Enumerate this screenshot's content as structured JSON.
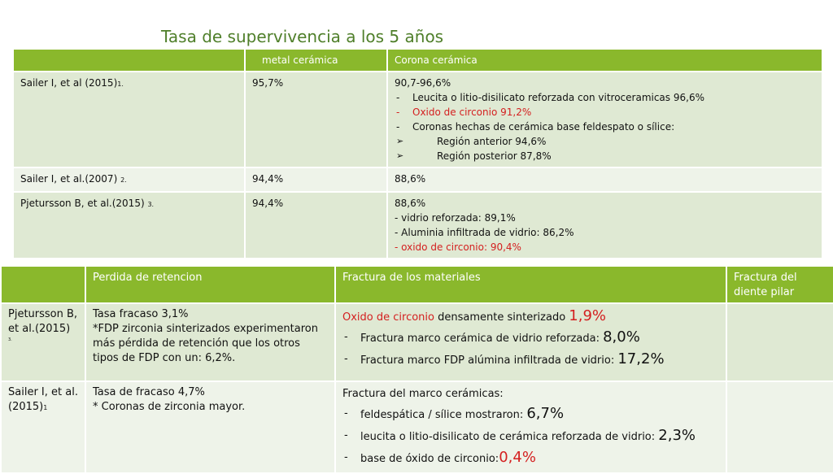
{
  "title": "Tasa de supervivencia a los 5 años",
  "table1": {
    "headers": [
      "",
      "metal cerámica",
      "Corona cerámica"
    ],
    "rows": [
      {
        "author": "Sailer I, et al (2015)",
        "ref": "1.",
        "metal": "95,7%",
        "corona_head": "90,7-96,6%",
        "items": [
          {
            "text": "Leucita o litio-disilicato reforzada con vitroceramicas 96,6%",
            "red": false
          },
          {
            "text": "Oxido de circonio 91,2%",
            "red": true
          },
          {
            "text": "Coronas hechas de cerámica base feldespato o sílice:",
            "red": false
          }
        ],
        "subitems": [
          "Región anterior 94,6%",
          "Región posterior 87,8%"
        ]
      },
      {
        "author": "Sailer I, et al.(2007)",
        "ref": "2.",
        "metal": "94,4%",
        "corona_head": "88,6%"
      },
      {
        "author": "Pjetursson B, et al.(2015)",
        "ref": "3.",
        "metal": "94,4%",
        "corona_head": "88,6%",
        "lines": [
          "- vidrio reforzada: 89,1%",
          "- Aluminia infiltrada de vidrio: 86,2%"
        ],
        "red_line": "- oxido de circonio: 90,4%"
      }
    ]
  },
  "table2": {
    "headers": [
      "",
      "Perdida de retencion",
      "Fractura de los materiales",
      "Fractura del diente pilar"
    ],
    "rows": [
      {
        "author": "Pjetursson B, et al.(2015)",
        "ref": "3.",
        "retencion": [
          "Tasa fracaso 3,1%",
          "*FDP zirconia sinterizados experimentaron más pérdida de retención que los otros tipos de FDP con un: 6,2%."
        ],
        "frac_lead_red": "Oxido de circonio",
        "frac_lead_rest": " densamente sinterizado ",
        "frac_lead_big": "1,9%",
        "frac_items": [
          {
            "text": "Fractura marco cerámica de vidrio reforzada: ",
            "big": "8,0%"
          },
          {
            "text": "Fractura marco FDP alúmina infiltrada de vidrio: ",
            "big": "17,2%"
          }
        ],
        "pilar": ""
      },
      {
        "author": "Sailer I, et al. (2015)",
        "ref": "1",
        "retencion": [
          "Tasa de fracaso 4,7%",
          "* Coronas de zirconia mayor."
        ],
        "frac_lead": "Fractura del marco cerámicas:",
        "frac_items": [
          {
            "text": "feldespática / sílice mostraron: ",
            "big": "6,7%"
          },
          {
            "text": "leucita o litio-disilicato de cerámica reforzada de vidrio: ",
            "big": "2,3%"
          },
          {
            "text": " base de óxido de circonio:",
            "big": "0,4%"
          }
        ],
        "pilar": ""
      }
    ]
  }
}
